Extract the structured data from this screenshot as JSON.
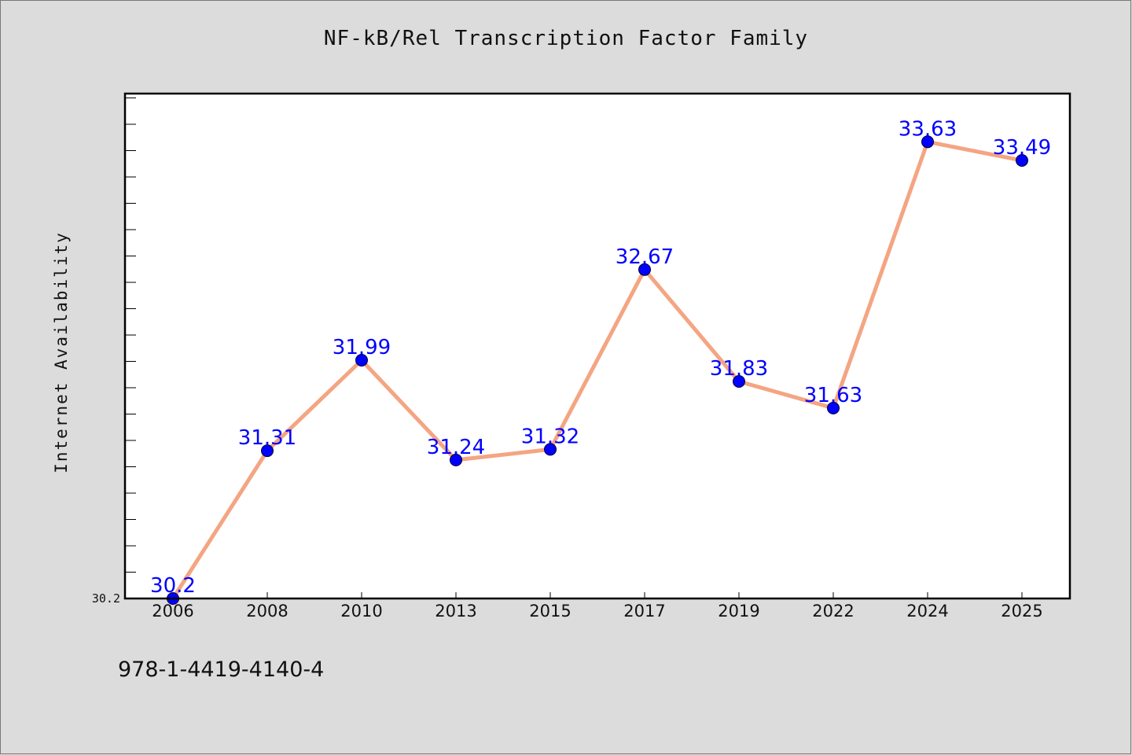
{
  "chart_data": {
    "type": "line",
    "title": "NF-kB/Rel Transcription Factor Family",
    "xlabel": "",
    "ylabel": "Internet Availability",
    "categories": [
      "2006",
      "2008",
      "2010",
      "2013",
      "2015",
      "2017",
      "2019",
      "2022",
      "2024",
      "2025"
    ],
    "series": [
      {
        "values": [
          30.2,
          31.31,
          31.99,
          31.24,
          31.32,
          32.67,
          31.83,
          31.63,
          33.63,
          33.49
        ],
        "labels": [
          "30.2",
          "31.31",
          "31.99",
          "31.24",
          "31.32",
          "32.67",
          "31.83",
          "31.63",
          "33.63",
          "33.49"
        ]
      }
    ],
    "ytick_labels": [
      "30.2"
    ],
    "ylim": [
      30.2,
      34.0
    ],
    "grid": false,
    "colors": {
      "line": "#f4a582",
      "marker": "#0000ff",
      "data_label": "#0000ff",
      "plot_background": "#ffffff",
      "figure_background": "#dcdcdc"
    }
  },
  "footer_text": "978-1-4419-4140-4"
}
